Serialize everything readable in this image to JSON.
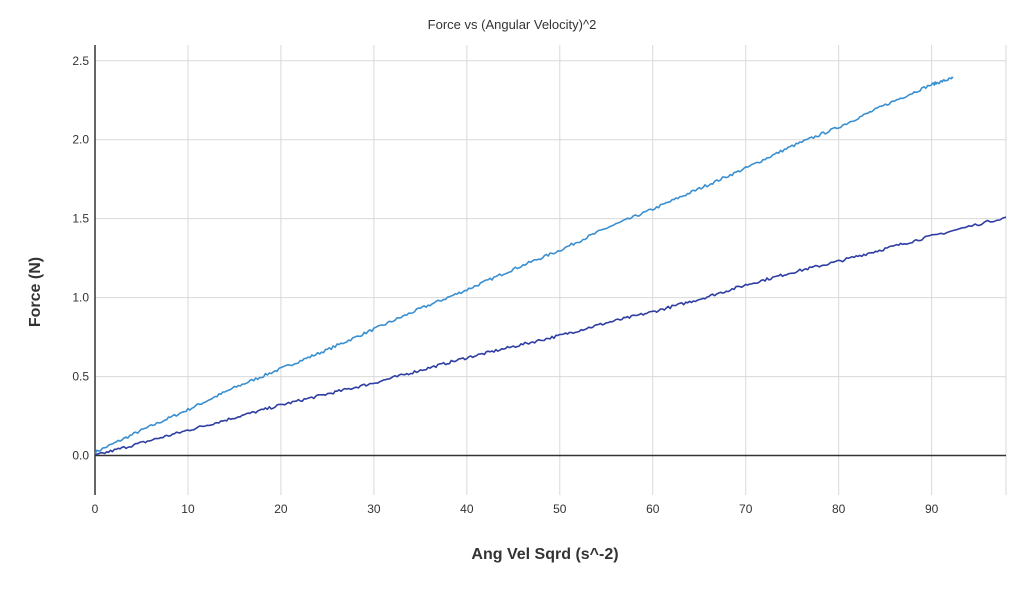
{
  "chart_data": {
    "type": "line",
    "title": "Force vs (Angular Velocity)^2",
    "xlabel": "Ang Vel Sqrd (s^-2)",
    "ylabel": "Force (N)",
    "xlim": [
      0,
      98
    ],
    "ylim": [
      -0.25,
      2.6
    ],
    "xticks": [
      0,
      10,
      20,
      30,
      40,
      50,
      60,
      70,
      80,
      90
    ],
    "xtick_labels": [
      "0",
      "10",
      "20",
      "30",
      "40",
      "50",
      "60",
      "70",
      "80",
      "90"
    ],
    "yticks": [
      0.0,
      0.5,
      1.0,
      1.5,
      2.0,
      2.5
    ],
    "ytick_labels": [
      "0.0",
      "0.5",
      "1.0",
      "1.5",
      "2.0",
      "2.5"
    ],
    "grid": true,
    "legend": "none",
    "series": [
      {
        "color": "#3a8fd0",
        "x": [
          0,
          5,
          10,
          15,
          20,
          25,
          30,
          35,
          40,
          45,
          50,
          55,
          60,
          65,
          70,
          75,
          80,
          85,
          90,
          92.3
        ],
        "y": [
          0.02,
          0.16,
          0.29,
          0.43,
          0.55,
          0.67,
          0.8,
          0.93,
          1.05,
          1.18,
          1.3,
          1.44,
          1.56,
          1.69,
          1.82,
          1.96,
          2.08,
          2.22,
          2.35,
          2.39
        ]
      },
      {
        "color": "#2e3ea3",
        "x": [
          0,
          5,
          10,
          15,
          20,
          25,
          30,
          35,
          40,
          45,
          50,
          55,
          60,
          65,
          70,
          75,
          80,
          85,
          90,
          98
        ],
        "y": [
          0.0,
          0.08,
          0.16,
          0.24,
          0.32,
          0.39,
          0.46,
          0.54,
          0.62,
          0.69,
          0.76,
          0.84,
          0.91,
          0.99,
          1.08,
          1.16,
          1.23,
          1.31,
          1.39,
          1.51
        ]
      }
    ]
  }
}
